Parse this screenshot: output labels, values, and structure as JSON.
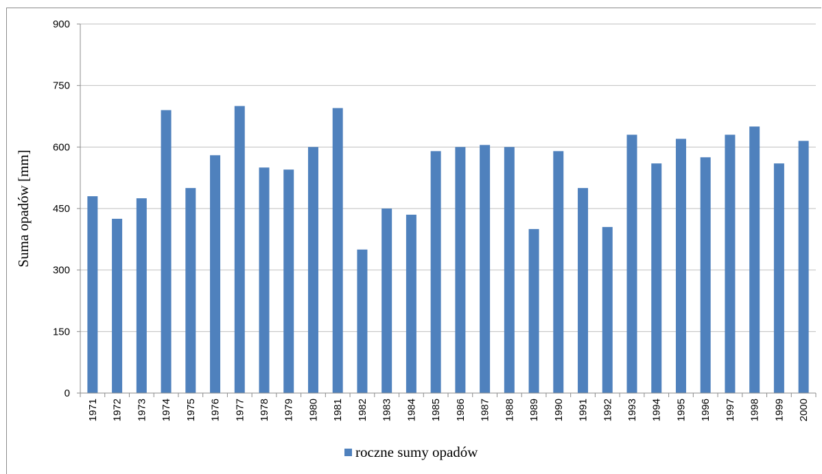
{
  "chart_data": {
    "type": "bar",
    "title": "",
    "xlabel": "",
    "ylabel": "Suma opadów [mm]",
    "ylim": [
      0,
      900
    ],
    "yticks": [
      0,
      150,
      300,
      450,
      600,
      750,
      900
    ],
    "grid": true,
    "legend_position": "bottom",
    "bar_color": "#4f81bd",
    "categories": [
      "1971",
      "1972",
      "1973",
      "1974",
      "1975",
      "1976",
      "1977",
      "1978",
      "1979",
      "1980",
      "1981",
      "1982",
      "1983",
      "1984",
      "1985",
      "1986",
      "1987",
      "1988",
      "1989",
      "1990",
      "1991",
      "1992",
      "1993",
      "1994",
      "1995",
      "1996",
      "1997",
      "1998",
      "1999",
      "2000"
    ],
    "series": [
      {
        "name": "roczne sumy opadów",
        "values": [
          480,
          425,
          475,
          690,
          500,
          580,
          700,
          550,
          545,
          600,
          695,
          350,
          450,
          435,
          590,
          600,
          605,
          600,
          400,
          590,
          500,
          405,
          630,
          560,
          620,
          575,
          630,
          650,
          560,
          615
        ]
      }
    ]
  }
}
